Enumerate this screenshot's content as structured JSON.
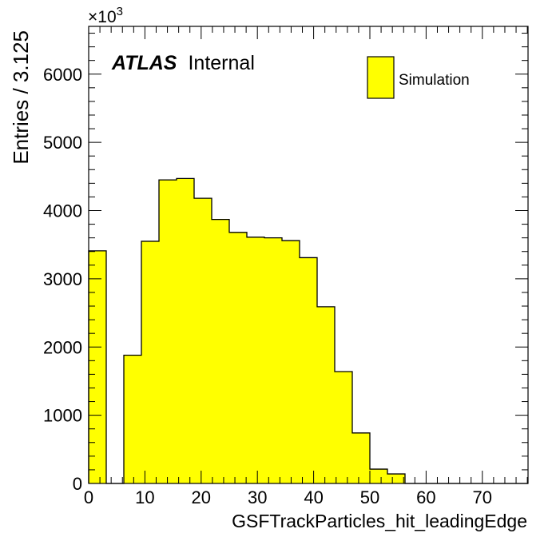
{
  "chart_data": {
    "type": "bar",
    "style": "histogram",
    "x_label": "GSFTrackParticles_hit_leadingEdge",
    "y_label": "Entries / 3.125",
    "y_multiplier": "×10",
    "y_multiplier_exponent": "3",
    "xlim": [
      0,
      78.125
    ],
    "ylim": [
      0,
      6700
    ],
    "bin_width": 3.125,
    "x_ticks": [
      0,
      10,
      20,
      30,
      40,
      50,
      60,
      70
    ],
    "x_tick_labels": [
      "0",
      "10",
      "20",
      "30",
      "40",
      "50",
      "60",
      "70"
    ],
    "y_ticks": [
      0,
      1000,
      2000,
      3000,
      4000,
      5000,
      6000
    ],
    "y_tick_labels": [
      "0",
      "1000",
      "2000",
      "3000",
      "4000",
      "5000",
      "6000"
    ],
    "bin_edges": [
      0,
      3.125,
      6.25,
      9.375,
      12.5,
      15.625,
      18.75,
      21.875,
      25,
      28.125,
      31.25,
      34.375,
      37.5,
      40.625,
      43.75,
      46.875,
      50,
      53.125,
      56.25,
      59.375,
      62.5,
      65.625,
      68.75,
      71.875,
      75,
      78.125
    ],
    "values": [
      3410,
      0,
      1880,
      3550,
      4450,
      4470,
      4180,
      3870,
      3680,
      3610,
      3600,
      3560,
      3310,
      2590,
      1640,
      740,
      210,
      140,
      0,
      0,
      0,
      0,
      0,
      0,
      0
    ],
    "series": [
      {
        "name": "Simulation",
        "color": "#ffff00"
      }
    ],
    "legend_position": "top-right",
    "grid": false
  },
  "atlas_label": {
    "bold": "ATLAS",
    "text": "Internal"
  },
  "legend": {
    "entries": [
      {
        "label": "Simulation",
        "color": "#ffff00"
      }
    ]
  }
}
